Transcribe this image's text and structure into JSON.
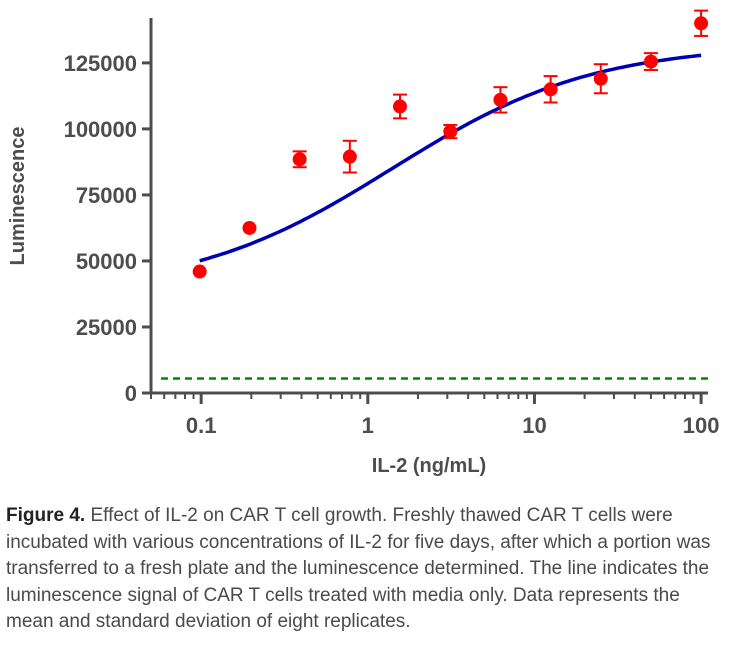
{
  "chart_data": {
    "type": "scatter",
    "xlabel": "IL-2 (ng/mL)",
    "ylabel": "Luminescence",
    "xscale": "log",
    "xlim": [
      0.05,
      110
    ],
    "ylim": [
      0,
      142000
    ],
    "xticks": [
      {
        "value": 0.1,
        "label": "0.1"
      },
      {
        "value": 1,
        "label": "1"
      },
      {
        "value": 10,
        "label": "10"
      },
      {
        "value": 100,
        "label": "100"
      }
    ],
    "yticks": [
      {
        "value": 0,
        "label": "0"
      },
      {
        "value": 25000,
        "label": "25000"
      },
      {
        "value": 50000,
        "label": "50000"
      },
      {
        "value": 75000,
        "label": "75000"
      },
      {
        "value": 100000,
        "label": "100000"
      },
      {
        "value": 125000,
        "label": "125000"
      }
    ],
    "points": [
      {
        "x": 0.098,
        "y": 46000,
        "sd": 0
      },
      {
        "x": 0.195,
        "y": 62500,
        "sd": 0
      },
      {
        "x": 0.39,
        "y": 88500,
        "sd": 3000
      },
      {
        "x": 0.78,
        "y": 89500,
        "sd": 6000
      },
      {
        "x": 1.56,
        "y": 108500,
        "sd": 4500
      },
      {
        "x": 3.125,
        "y": 99000,
        "sd": 2500
      },
      {
        "x": 6.25,
        "y": 111000,
        "sd": 4800
      },
      {
        "x": 12.5,
        "y": 115000,
        "sd": 5000
      },
      {
        "x": 25,
        "y": 119000,
        "sd": 5500
      },
      {
        "x": 50,
        "y": 125500,
        "sd": 3200
      },
      {
        "x": 100,
        "y": 140000,
        "sd": 4800
      }
    ],
    "fit_curve": {
      "model": "four-parameter logistic",
      "bottom": 38000,
      "top": 132000,
      "ec50": 1.4,
      "hill": 0.72
    },
    "media_only_line": {
      "y": 5500
    },
    "colors": {
      "points": "#ff0000",
      "curve": "#0000b3",
      "media_line": "#008a00",
      "axis": "#4d4d4d"
    }
  },
  "caption": {
    "label": "Figure 4.",
    "text": " Effect of IL-2 on CAR T cell growth. Freshly thawed CAR T cells were incubated with various concentrations of IL-2 for five days, after which a portion was transferred to a fresh plate and the luminescence determined. The line indicates the luminescence signal of CAR T cells treated with media only. Data represents the mean and standard deviation of eight replicates."
  }
}
